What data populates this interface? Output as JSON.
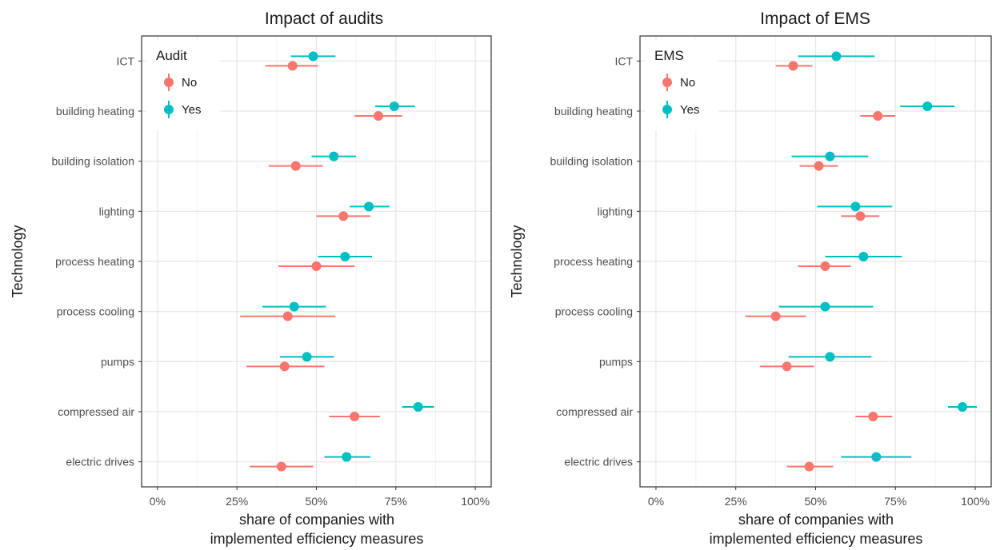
{
  "chart_data": [
    {
      "type": "scatter",
      "title": "Impact of audits",
      "xlabel": [
        "share of companies with",
        "implemented efficiency measures"
      ],
      "ylabel": "Technology",
      "xlim": [
        -0.05,
        1.05
      ],
      "xticks": [
        0,
        0.25,
        0.5,
        0.75,
        1.0
      ],
      "xtick_labels": [
        "0%",
        "25%",
        "50%",
        "75%",
        "100%"
      ],
      "categories": [
        "ICT",
        "building heating",
        "building isolation",
        "lighting",
        "process heating",
        "process cooling",
        "pumps",
        "compressed air",
        "electric drives"
      ],
      "grid": true,
      "legend": {
        "title": "Audit",
        "position": "top-left"
      },
      "series": [
        {
          "name": "No",
          "color": "#F8766D",
          "values": [
            0.425,
            0.695,
            0.435,
            0.585,
            0.5,
            0.41,
            0.4,
            0.62,
            0.39
          ],
          "lower": [
            0.34,
            0.62,
            0.35,
            0.5,
            0.38,
            0.26,
            0.28,
            0.54,
            0.29
          ],
          "upper": [
            0.505,
            0.77,
            0.52,
            0.67,
            0.62,
            0.56,
            0.525,
            0.7,
            0.49
          ]
        },
        {
          "name": "Yes",
          "color": "#00BFC4",
          "values": [
            0.49,
            0.745,
            0.555,
            0.665,
            0.59,
            0.43,
            0.47,
            0.82,
            0.595
          ],
          "lower": [
            0.42,
            0.685,
            0.485,
            0.605,
            0.505,
            0.33,
            0.385,
            0.77,
            0.525
          ],
          "upper": [
            0.56,
            0.81,
            0.625,
            0.73,
            0.675,
            0.53,
            0.555,
            0.87,
            0.67
          ]
        }
      ]
    },
    {
      "type": "scatter",
      "title": "Impact of EMS",
      "xlabel": [
        "share of companies with",
        "implemented efficiency measures"
      ],
      "ylabel": "Technology",
      "xlim": [
        -0.05,
        1.05
      ],
      "xticks": [
        0,
        0.25,
        0.5,
        0.75,
        1.0
      ],
      "xtick_labels": [
        "0%",
        "25%",
        "50%",
        "75%",
        "100%"
      ],
      "categories": [
        "ICT",
        "building heating",
        "building isolation",
        "lighting",
        "process heating",
        "process cooling",
        "pumps",
        "compressed air",
        "electric drives"
      ],
      "grid": true,
      "legend": {
        "title": "EMS",
        "position": "top-left"
      },
      "series": [
        {
          "name": "No",
          "color": "#F8766D",
          "values": [
            0.43,
            0.695,
            0.51,
            0.64,
            0.53,
            0.375,
            0.41,
            0.68,
            0.48
          ],
          "lower": [
            0.375,
            0.64,
            0.45,
            0.58,
            0.445,
            0.28,
            0.325,
            0.625,
            0.41
          ],
          "upper": [
            0.49,
            0.75,
            0.57,
            0.7,
            0.61,
            0.47,
            0.495,
            0.74,
            0.555
          ]
        },
        {
          "name": "Yes",
          "color": "#00BFC4",
          "values": [
            0.565,
            0.85,
            0.545,
            0.625,
            0.65,
            0.53,
            0.545,
            0.96,
            0.69
          ],
          "lower": [
            0.445,
            0.765,
            0.425,
            0.505,
            0.53,
            0.385,
            0.415,
            0.915,
            0.58
          ],
          "upper": [
            0.685,
            0.935,
            0.665,
            0.74,
            0.77,
            0.68,
            0.675,
            1.005,
            0.8
          ]
        }
      ]
    }
  ]
}
